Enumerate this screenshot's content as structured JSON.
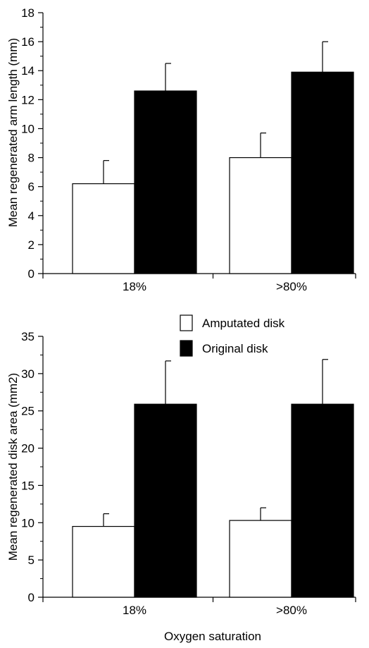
{
  "chart_data": [
    {
      "type": "bar",
      "categories": [
        "18%",
        ">80%"
      ],
      "series": [
        {
          "name": "Amputated disk",
          "values": [
            6.2,
            8.0
          ],
          "errors": [
            1.6,
            1.7
          ]
        },
        {
          "name": "Original disk",
          "values": [
            12.6,
            13.9
          ],
          "errors": [
            1.9,
            2.1
          ]
        }
      ],
      "xlabel": "",
      "ylabel": "Mean regenerated arm length (mm)",
      "ylim": [
        0,
        18
      ],
      "yticks": [
        0,
        2,
        4,
        6,
        8,
        10,
        12,
        14,
        16,
        18
      ],
      "grid": false
    },
    {
      "type": "bar",
      "categories": [
        "18%",
        ">80%"
      ],
      "series": [
        {
          "name": "Amputated disk",
          "values": [
            9.5,
            10.3
          ],
          "errors": [
            1.7,
            1.7
          ]
        },
        {
          "name": "Original disk",
          "values": [
            25.9,
            25.9
          ],
          "errors": [
            5.8,
            6.0
          ]
        }
      ],
      "xlabel": "Oxygen saturation",
      "ylabel": "Mean regenerated disk area (mm2)",
      "ylim": [
        0,
        35
      ],
      "yticks": [
        0,
        5,
        10,
        15,
        20,
        25,
        30,
        35
      ],
      "grid": false
    }
  ],
  "legend": {
    "position": "top-center of lower panel",
    "items": [
      {
        "label": "Amputated disk",
        "color": "#ffffff"
      },
      {
        "label": "Original disk",
        "color": "#000000"
      }
    ]
  },
  "colors": {
    "amputated": "#ffffff",
    "original": "#000000",
    "axis": "#000000"
  }
}
